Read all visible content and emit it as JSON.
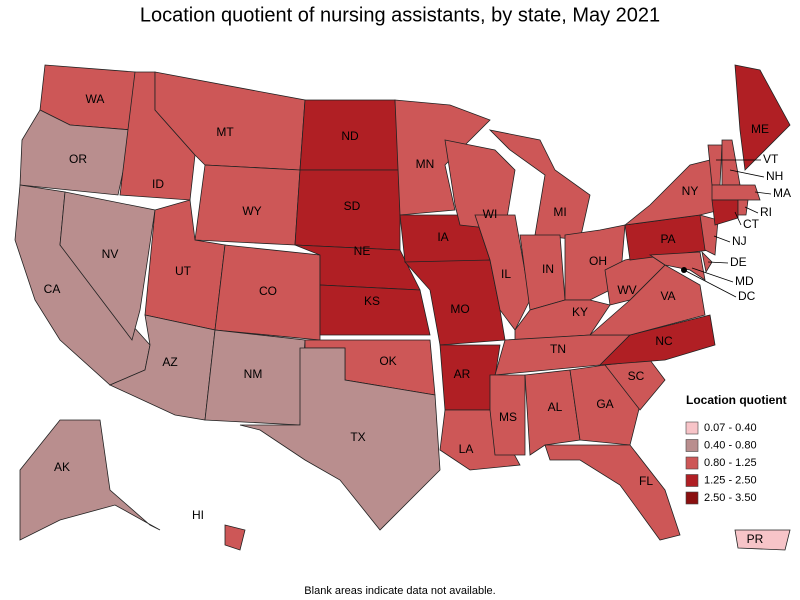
{
  "title": "Location quotient of nursing assistants, by state, May 2021",
  "note": "Blank areas indicate data not available.",
  "legend": {
    "title": "Location quotient",
    "items": [
      {
        "label": "0.07 - 0.40",
        "color": "#f7c4c8"
      },
      {
        "label": "0.40 - 0.80",
        "color": "#b98e8e"
      },
      {
        "label": "0.80 - 1.25",
        "color": "#cd5757"
      },
      {
        "label": "1.25 - 2.50",
        "color": "#b01f24"
      },
      {
        "label": "2.50 - 3.50",
        "color": "#8a0f0f"
      }
    ]
  },
  "states": [
    {
      "abbr": "WA",
      "class": 2
    },
    {
      "abbr": "OR",
      "class": 1
    },
    {
      "abbr": "CA",
      "class": 1
    },
    {
      "abbr": "NV",
      "class": 1
    },
    {
      "abbr": "ID",
      "class": 2
    },
    {
      "abbr": "MT",
      "class": 2
    },
    {
      "abbr": "WY",
      "class": 2
    },
    {
      "abbr": "UT",
      "class": 2
    },
    {
      "abbr": "CO",
      "class": 2
    },
    {
      "abbr": "AZ",
      "class": 1
    },
    {
      "abbr": "NM",
      "class": 1
    },
    {
      "abbr": "ND",
      "class": 3
    },
    {
      "abbr": "SD",
      "class": 3
    },
    {
      "abbr": "NE",
      "class": 3
    },
    {
      "abbr": "KS",
      "class": 3
    },
    {
      "abbr": "OK",
      "class": 2
    },
    {
      "abbr": "TX",
      "class": 1
    },
    {
      "abbr": "MN",
      "class": 2
    },
    {
      "abbr": "IA",
      "class": 3
    },
    {
      "abbr": "MO",
      "class": 3
    },
    {
      "abbr": "AR",
      "class": 3
    },
    {
      "abbr": "LA",
      "class": 2
    },
    {
      "abbr": "WI",
      "class": 2
    },
    {
      "abbr": "IL",
      "class": 2
    },
    {
      "abbr": "MI",
      "class": 2
    },
    {
      "abbr": "IN",
      "class": 2
    },
    {
      "abbr": "OH",
      "class": 2
    },
    {
      "abbr": "KY",
      "class": 2
    },
    {
      "abbr": "TN",
      "class": 2
    },
    {
      "abbr": "MS",
      "class": 2
    },
    {
      "abbr": "AL",
      "class": 2
    },
    {
      "abbr": "GA",
      "class": 2
    },
    {
      "abbr": "FL",
      "class": 2
    },
    {
      "abbr": "SC",
      "class": 2
    },
    {
      "abbr": "NC",
      "class": 3
    },
    {
      "abbr": "VA",
      "class": 2
    },
    {
      "abbr": "WV",
      "class": 2
    },
    {
      "abbr": "PA",
      "class": 3
    },
    {
      "abbr": "NY",
      "class": 2
    },
    {
      "abbr": "NJ",
      "class": 2
    },
    {
      "abbr": "MD",
      "class": 2
    },
    {
      "abbr": "DE",
      "class": 2
    },
    {
      "abbr": "VT",
      "class": 2
    },
    {
      "abbr": "NH",
      "class": 2
    },
    {
      "abbr": "ME",
      "class": 3
    },
    {
      "abbr": "MA",
      "class": 2
    },
    {
      "abbr": "CT",
      "class": 3
    },
    {
      "abbr": "RI",
      "class": 2
    },
    {
      "abbr": "AK",
      "class": 1
    },
    {
      "abbr": "HI",
      "class": 2
    },
    {
      "abbr": "PR",
      "class": 0
    },
    {
      "abbr": "DC",
      "class": 2
    }
  ]
}
